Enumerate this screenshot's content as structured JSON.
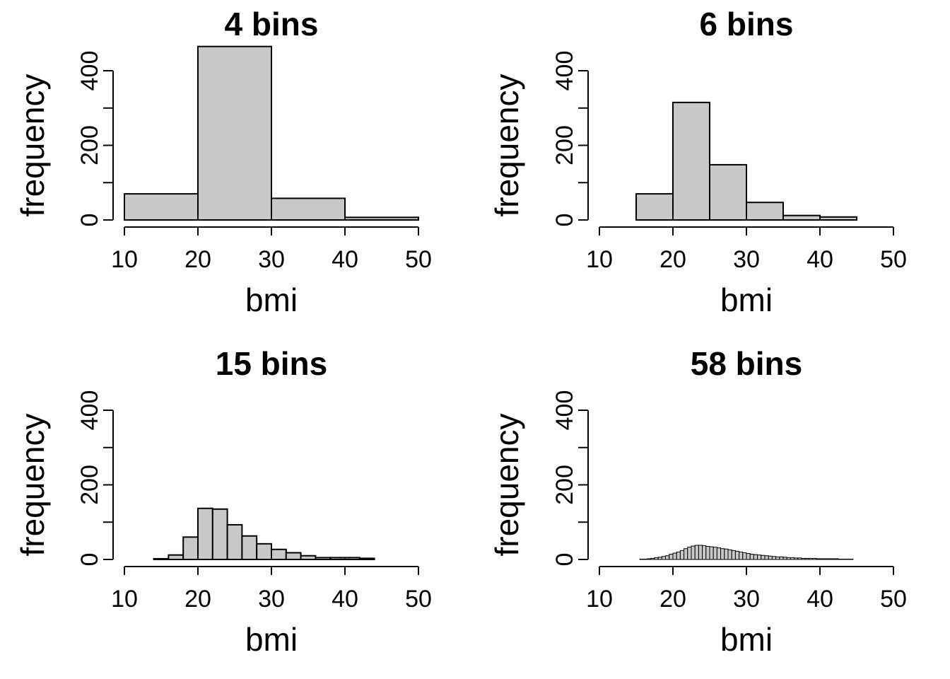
{
  "chart_data": [
    {
      "type": "bar",
      "title": "4 bins",
      "xlabel": "bmi",
      "ylabel": "frequency",
      "xlim": [
        10,
        50
      ],
      "ylim": [
        0,
        400
      ],
      "xticks": [
        "10",
        "20",
        "30",
        "40",
        "50"
      ],
      "yticks": [
        "0",
        "200",
        "400"
      ],
      "bar_color": "#c8c8c8",
      "bin_edges": [
        10,
        20,
        30,
        40,
        50
      ],
      "values": [
        70,
        465,
        58,
        7
      ]
    },
    {
      "type": "bar",
      "title": "6 bins",
      "xlabel": "bmi",
      "ylabel": "frequency",
      "xlim": [
        10,
        50
      ],
      "ylim": [
        0,
        400
      ],
      "xticks": [
        "10",
        "20",
        "30",
        "40",
        "50"
      ],
      "yticks": [
        "0",
        "200",
        "400"
      ],
      "bar_color": "#c8c8c8",
      "bin_edges": [
        15,
        20,
        25,
        30,
        35,
        40,
        45
      ],
      "values": [
        70,
        315,
        148,
        47,
        12,
        8
      ]
    },
    {
      "type": "bar",
      "title": "15 bins",
      "xlabel": "bmi",
      "ylabel": "frequency",
      "xlim": [
        10,
        50
      ],
      "ylim": [
        0,
        400
      ],
      "xticks": [
        "10",
        "20",
        "30",
        "40",
        "50"
      ],
      "yticks": [
        "0",
        "200",
        "400"
      ],
      "bar_color": "#c8c8c8",
      "bin_edges": [
        14,
        16,
        18,
        20,
        22,
        24,
        26,
        28,
        30,
        32,
        34,
        36,
        38,
        40,
        42,
        44
      ],
      "values": [
        2,
        12,
        60,
        137,
        135,
        93,
        63,
        42,
        27,
        18,
        10,
        5,
        5,
        5,
        3
      ]
    },
    {
      "type": "bar",
      "title": "58 bins",
      "xlabel": "bmi",
      "ylabel": "frequency",
      "xlim": [
        10,
        50
      ],
      "ylim": [
        0,
        400
      ],
      "xticks": [
        "10",
        "20",
        "30",
        "40",
        "50"
      ],
      "yticks": [
        "0",
        "200",
        "400"
      ],
      "bar_color": "#c8c8c8",
      "bin_start": 15.5,
      "bin_width": 0.5,
      "values": [
        1,
        1,
        2,
        3,
        5,
        6,
        8,
        10,
        14,
        17,
        20,
        24,
        29,
        33,
        36,
        38,
        38,
        37,
        35,
        34,
        33,
        31,
        29,
        28,
        26,
        24,
        22,
        20,
        18,
        16,
        14,
        13,
        12,
        11,
        10,
        9,
        8,
        7,
        7,
        6,
        5,
        5,
        4,
        4,
        3,
        3,
        3,
        3,
        2,
        2,
        2,
        2,
        2,
        2,
        1,
        1,
        1,
        1
      ]
    }
  ]
}
